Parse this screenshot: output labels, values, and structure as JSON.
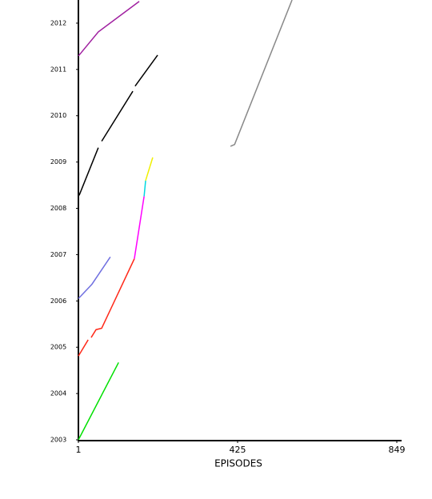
{
  "chart_data": {
    "type": "line",
    "xlabel": "EPISODES",
    "xlim": [
      1,
      849
    ],
    "xticks": [
      1,
      425,
      849
    ],
    "ylim": [
      2003,
      2012.5
    ],
    "yticks": [
      2003,
      2004,
      2005,
      2006,
      2007,
      2008,
      2009,
      2010,
      2011,
      2012
    ],
    "series": [
      {
        "color": "#00e000",
        "x": [
          1,
          108
        ],
        "values": [
          2003,
          2004.67
        ]
      },
      {
        "color": "#ff2a1a",
        "x": [
          1,
          27,
          null,
          35,
          48,
          63,
          150
        ],
        "values": [
          2004.81,
          2005.16,
          null,
          2005.21,
          2005.38,
          2005.41,
          2006.91
        ]
      },
      {
        "color": "#ff00ff",
        "x": [
          150,
          176
        ],
        "values": [
          2006.91,
          2008.26
        ]
      },
      {
        "color": "#00d8e0",
        "x": [
          176,
          180
        ],
        "values": [
          2008.26,
          2008.6
        ]
      },
      {
        "color": "#f0f000",
        "x": [
          180,
          199
        ],
        "values": [
          2008.6,
          2009.1
        ]
      },
      {
        "color": "#7070e0",
        "x": [
          1,
          37,
          86
        ],
        "values": [
          2006.05,
          2006.36,
          2006.95
        ]
      },
      {
        "color": "#000000",
        "x": [
          3,
          54,
          null,
          63,
          146,
          null,
          152,
          212
        ],
        "values": [
          2008.28,
          2009.31,
          null,
          2009.45,
          2010.53,
          null,
          2010.64,
          2011.31
        ]
      },
      {
        "color": "#888888",
        "x": [
          406,
          417,
          570
        ],
        "values": [
          2009.34,
          2009.38,
          2012.5
        ]
      },
      {
        "color": "#a020a0",
        "x": [
          1,
          54,
          163
        ],
        "values": [
          2011.29,
          2011.81,
          2012.47
        ]
      }
    ]
  }
}
